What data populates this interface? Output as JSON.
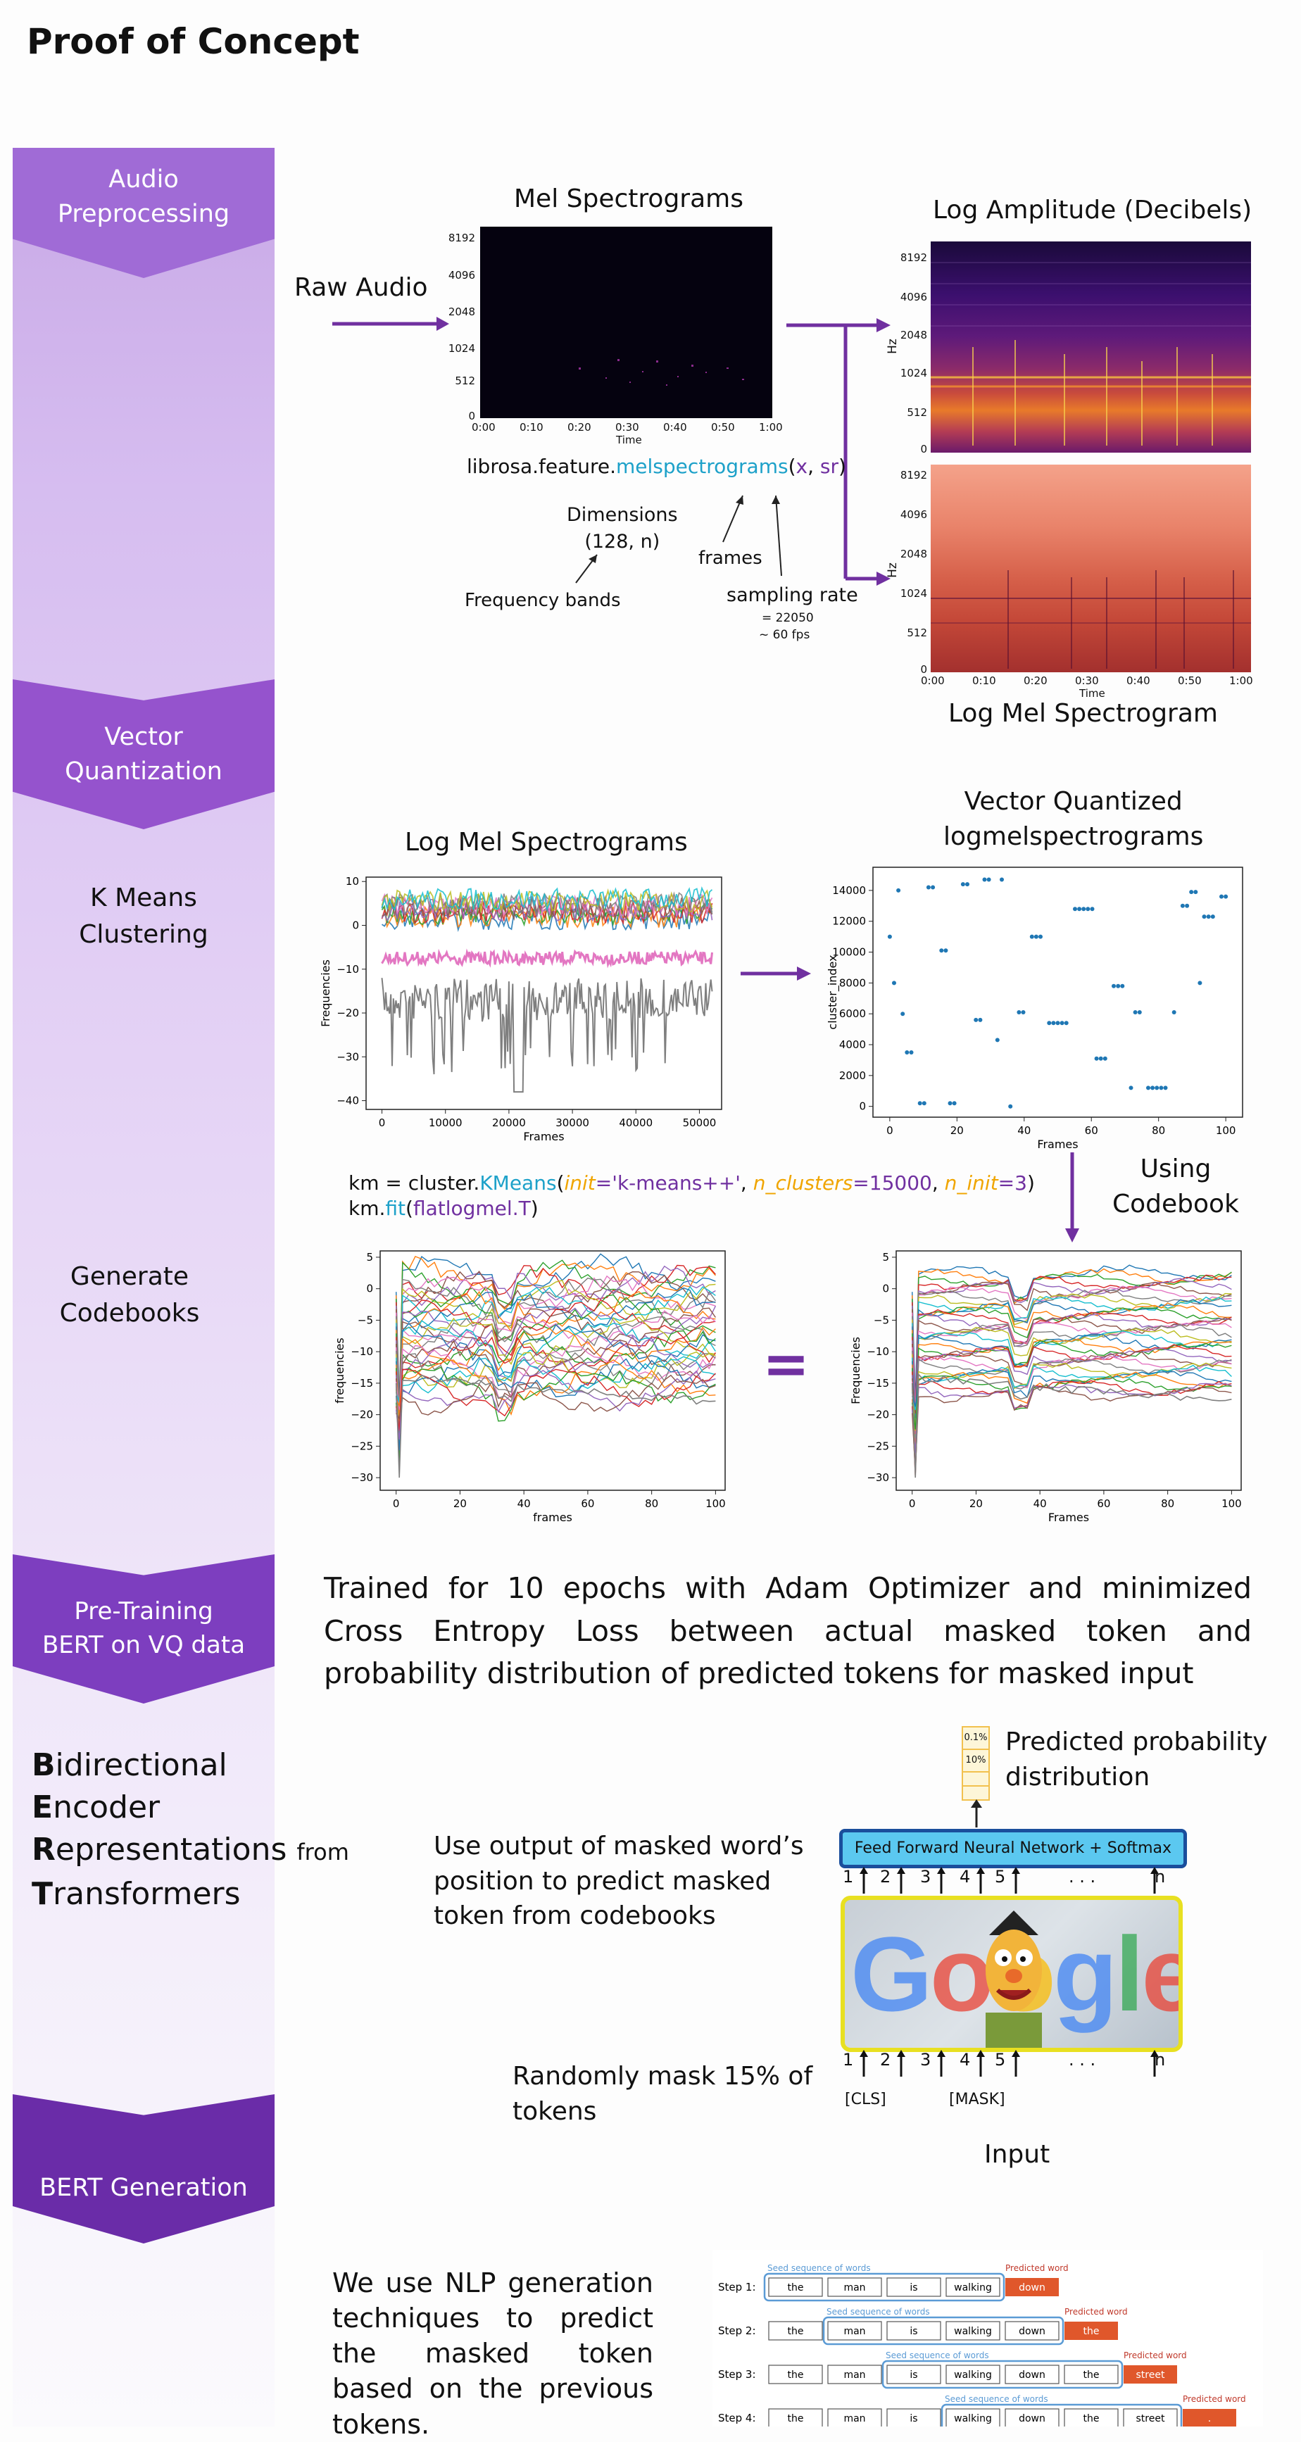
{
  "title": "Proof of Concept",
  "sidebar": {
    "chevrons": [
      {
        "label": "Audio\nPreprocessing",
        "color": "#a06bd6"
      },
      {
        "label": "Vector\nQuantization",
        "color": "#9553cd"
      },
      {
        "label": "Pre-Training\nBERT on VQ data",
        "color": "#7d3ebf"
      },
      {
        "label": "BERT Generation",
        "color": "#6a2ca8"
      }
    ],
    "steps": [
      {
        "label": "K Means\nClustering"
      },
      {
        "label": "Generate\nCodebooks"
      }
    ],
    "bert_acronym": [
      {
        "initial": "B",
        "rest": "idirectional"
      },
      {
        "initial": "E",
        "rest": "ncoder"
      },
      {
        "initial": "R",
        "rest": "epresentations",
        "suffix": "from"
      },
      {
        "initial": "T",
        "rest": "ransformers"
      }
    ]
  },
  "preprocessing": {
    "raw_audio_label": "Raw Audio",
    "mel_title": "Mel Spectrograms",
    "log_amp_title": "Log Amplitude (Decibels)",
    "log_mel_title": "Log Mel Spectrogram",
    "y_ticks": [
      "8192",
      "4096",
      "2048",
      "1024",
      "512",
      "0"
    ],
    "x_ticks": [
      "0:00",
      "0:10",
      "0:20",
      "0:30",
      "0:40",
      "0:50",
      "1:00"
    ],
    "x_label": "Time",
    "y_label": "Hz",
    "code_prefix": "librosa.feature.",
    "code_func": "melspectrograms",
    "code_open": "(",
    "code_x": "x",
    "code_sep": ", ",
    "code_sr": "sr",
    "code_close": ")",
    "dimensions_label": "Dimensions\n(128, n)",
    "frames_label": "frames",
    "freq_bands_label": "Frequency bands",
    "sampling_rate_label": "sampling rate",
    "sampling_rate_value": "= 22050",
    "fps_value": "~ 60 fps"
  },
  "kmeans": {
    "log_mel_title": "Log Mel Spectrograms",
    "vq_title": "Vector Quantized\nlogmelspectrograms",
    "left_chart": {
      "xlabel": "Frames",
      "ylabel": "Frequencies",
      "yticks": [
        "10",
        "0",
        "−10",
        "−20",
        "−30",
        "−40"
      ],
      "xticks": [
        "0",
        "10000",
        "20000",
        "30000",
        "40000",
        "50000"
      ]
    },
    "right_chart": {
      "xlabel": "Frames",
      "ylabel": "cluster_index",
      "yticks": [
        "14000",
        "12000",
        "10000",
        "8000",
        "6000",
        "4000",
        "2000",
        "0"
      ],
      "xticks": [
        "0",
        "20",
        "40",
        "60",
        "80",
        "100"
      ]
    },
    "code_line1": {
      "km": "km = cluster.",
      "cls": "KMeans",
      "open": "(",
      "p1": "init",
      "eq1": "=",
      "v1": "'k-means++'",
      "c1": ", ",
      "p2": "n_clusters",
      "eq2": "=",
      "v2": "15000",
      "c2": ", ",
      "p3": "n_init",
      "eq3": "=",
      "v3": "3",
      "close": ")"
    },
    "code_line2": {
      "km": "km.",
      "fn": "fit",
      "open": "(",
      "arg": "flatlogmel.T",
      "close": ")"
    },
    "using_codebook": "Using\nCodebook"
  },
  "codebooks": {
    "left_chart": {
      "xlabel": "frames",
      "ylabel": "frequencies",
      "yticks": [
        "5",
        "0",
        "−5",
        "−10",
        "−15",
        "−20",
        "−25",
        "−30"
      ],
      "xticks": [
        "0",
        "20",
        "40",
        "60",
        "80",
        "100"
      ]
    },
    "right_chart": {
      "xlabel": "Frames",
      "ylabel": "Frequencies",
      "yticks": [
        "5",
        "0",
        "−5",
        "−10",
        "−15",
        "−20",
        "−25",
        "−30"
      ],
      "xticks": [
        "0",
        "20",
        "40",
        "60",
        "80",
        "100"
      ]
    },
    "equals": "="
  },
  "pretraining": {
    "paragraph": "Trained for 10 epochs with Adam Optimizer and minimized Cross Entropy Loss between actual masked token and probability distribution of predicted tokens for masked input"
  },
  "bert": {
    "predicted_label": "Predicted probability\ndistribution",
    "prob_values": [
      "0.1%",
      "10%"
    ],
    "ffnn_label": "Feed Forward Neural Network + Softmax",
    "use_output_text": "Use output of masked word’s\nposition to predict masked\ntoken from codebooks",
    "mask_text": "Randomly mask 15% of\ntokens",
    "positions": [
      "1",
      "2",
      "3",
      "4",
      "5",
      ". . .",
      "n"
    ],
    "cls_label": "[CLS]",
    "mask_label": "[MASK]",
    "input_label": "Input",
    "logo_letters": [
      "G",
      "o",
      "o",
      "g",
      "l",
      "e"
    ]
  },
  "generation": {
    "paragraph": "We use NLP generation techniques to predict the masked token based on the previous tokens.",
    "seed_label": "Seed sequence of words",
    "predicted_word_label": "Predicted word",
    "steps": [
      {
        "step": "Step 1:",
        "words": [
          "the",
          "man",
          "is",
          "walking"
        ],
        "pred": "down"
      },
      {
        "step": "Step 2:",
        "words": [
          "the",
          "man",
          "is",
          "walking",
          "down"
        ],
        "pred": "the"
      },
      {
        "step": "Step 3:",
        "words": [
          "the",
          "man",
          "is",
          "walking",
          "down",
          "the"
        ],
        "pred": "street"
      },
      {
        "step": "Step 4:",
        "words": [
          "the",
          "man",
          "is",
          "walking",
          "down",
          "the",
          "street"
        ],
        "pred": "."
      }
    ]
  },
  "colors": {
    "arrow": "#7030a0",
    "code_blue": "#1da1c9",
    "code_purple": "#7030a0",
    "code_orange": "#f0a500",
    "scatter": "#1f77b4",
    "gen_blue": "#5b9bd5",
    "gen_orange": "#e0572b",
    "ffnn_fill": "#5bc8f0",
    "ffnn_border": "#1a4e9c",
    "bert_border": "#e8e021"
  }
}
